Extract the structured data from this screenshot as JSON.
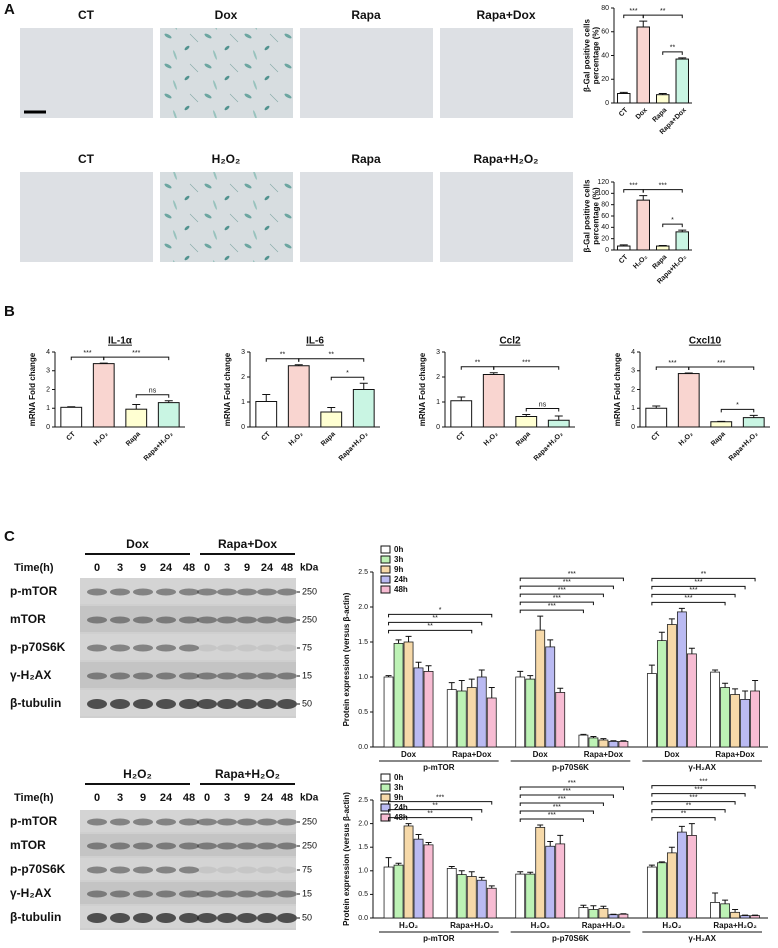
{
  "panels": [
    "A",
    "B",
    "C"
  ],
  "micrographs": {
    "rows": [
      [
        "CT",
        "Dox",
        "Rapa",
        "Rapa+Dox"
      ],
      [
        "CT",
        "H₂O₂",
        "Rapa",
        "Rapa+H₂O₂"
      ]
    ]
  },
  "blots": [
    {
      "groups": [
        "Dox",
        "Rapa+Dox"
      ],
      "time_label": "Time(h)",
      "times": [
        0,
        3,
        9,
        24,
        48
      ],
      "kda_label": "kDa",
      "proteins": [
        "p-mTOR",
        "mTOR",
        "p-p70S6K",
        "γ-H₂AX",
        "β-tubulin"
      ],
      "kda": [
        250,
        250,
        75,
        15,
        50
      ]
    },
    {
      "groups": [
        "H₂O₂",
        "Rapa+H₂O₂"
      ],
      "time_label": "Time(h)",
      "times": [
        0,
        3,
        9,
        24,
        48
      ],
      "kda_label": "kDa",
      "proteins": [
        "p-mTOR",
        "mTOR",
        "p-p70S6K",
        "γ-H₂AX",
        "β-tubulin"
      ],
      "kda": [
        250,
        250,
        75,
        15,
        50
      ]
    }
  ],
  "chart_data": [
    {
      "type": "bar",
      "y_label": [
        "β-Gal positive cells",
        "percentage (%)"
      ],
      "categories": [
        "CT",
        "Dox",
        "Rapa",
        "Rapa+Dox"
      ],
      "values": [
        8,
        64,
        7,
        37
      ],
      "errors": [
        1,
        5,
        1,
        1
      ],
      "colors": [
        "#ffffff",
        "#f9d5d0",
        "#ffffd2",
        "#c9f5e3"
      ],
      "ylim": [
        0,
        80
      ],
      "yticks": [
        0,
        20,
        40,
        60,
        80
      ],
      "annotations": [
        "***",
        "**",
        "**"
      ]
    },
    {
      "type": "bar",
      "y_label": [
        "β-Gal positive cells",
        "percentage (%)"
      ],
      "categories": [
        "CT",
        "H₂O₂",
        "Rapa",
        "Rapa+H₂O₂"
      ],
      "values": [
        7,
        88,
        7,
        32
      ],
      "errors": [
        2,
        8,
        1,
        3
      ],
      "colors": [
        "#ffffff",
        "#f9d5d0",
        "#ffffd2",
        "#c9f5e3"
      ],
      "ylim": [
        0,
        120
      ],
      "yticks": [
        0,
        20,
        40,
        60,
        80,
        100,
        120
      ],
      "annotations": [
        "***",
        "***",
        "*"
      ]
    },
    {
      "type": "bar",
      "title": "IL-1α",
      "y_label": [
        "mRNA Fold change"
      ],
      "categories": [
        "CT",
        "H₂O₂",
        "Rapa",
        "Rapa+H₂O₂"
      ],
      "values": [
        1.05,
        3.38,
        0.95,
        1.3
      ],
      "errors": [
        0.03,
        0.03,
        0.25,
        0.1
      ],
      "colors": [
        "#ffffff",
        "#f9d5d0",
        "#ffffd2",
        "#c9f5e3"
      ],
      "ylim": [
        0,
        4
      ],
      "yticks": [
        0,
        1,
        2,
        3,
        4
      ],
      "annotations": [
        "***",
        "***",
        "ns"
      ]
    },
    {
      "type": "bar",
      "title": "IL-6",
      "y_label": [
        "mRNA Fold change"
      ],
      "categories": [
        "CT",
        "H₂O₂",
        "Rapa",
        "Rapa+H₂O₂"
      ],
      "values": [
        1.02,
        2.45,
        0.6,
        1.5
      ],
      "errors": [
        0.28,
        0.04,
        0.18,
        0.25
      ],
      "colors": [
        "#ffffff",
        "#f9d5d0",
        "#ffffd2",
        "#c9f5e3"
      ],
      "ylim": [
        0,
        3
      ],
      "yticks": [
        0,
        1,
        2,
        3
      ],
      "annotations": [
        "**",
        "**",
        "*"
      ]
    },
    {
      "type": "bar",
      "title": "Ccl2",
      "y_label": [
        "mRNA Fold change"
      ],
      "categories": [
        "CT",
        "H₂O₂",
        "Rapa",
        "Rapa+H₂O₂"
      ],
      "values": [
        1.05,
        2.1,
        0.42,
        0.27
      ],
      "errors": [
        0.15,
        0.07,
        0.08,
        0.17
      ],
      "colors": [
        "#ffffff",
        "#f9d5d0",
        "#ffffd2",
        "#c9f5e3"
      ],
      "ylim": [
        0,
        3
      ],
      "yticks": [
        0,
        1,
        2,
        3
      ],
      "annotations": [
        "**",
        "***",
        "ns"
      ]
    },
    {
      "type": "bar",
      "title": "Cxcl10",
      "y_label": [
        "mRNA Fold change"
      ],
      "categories": [
        "CT",
        "H₂O₂",
        "Rapa",
        "Rapa+H₂O₂"
      ],
      "values": [
        1.0,
        2.85,
        0.28,
        0.5
      ],
      "errors": [
        0.12,
        0.03,
        0.02,
        0.12
      ],
      "colors": [
        "#ffffff",
        "#f9d5d0",
        "#ffffd2",
        "#c9f5e3"
      ],
      "ylim": [
        0,
        4
      ],
      "yticks": [
        0,
        1,
        2,
        3,
        4
      ],
      "annotations": [
        "***",
        "***",
        "*"
      ]
    },
    {
      "type": "grouped_bar",
      "y_label": [
        "Protein expression (versus β-actin)"
      ],
      "groups": [
        "p-mTOR",
        "p-p70S6K",
        "γ-H₂AX"
      ],
      "subgroups": [
        "Dox",
        "Rapa+Dox"
      ],
      "ylim": [
        0,
        2.5
      ],
      "yticks": [
        {
          "value": 0,
          "label": "0.0"
        },
        {
          "value": 0.5,
          "label": "0.5"
        },
        {
          "value": 1,
          "label": "1.0"
        },
        {
          "value": 1.5,
          "label": "1.5"
        },
        {
          "value": 2,
          "label": "2.0"
        },
        {
          "value": 2.5,
          "label": "2.5"
        }
      ],
      "series": [
        {
          "name": "0h",
          "color": "#ffffff",
          "values": [
            1.0,
            0.82,
            1.0,
            0.17,
            1.05,
            1.07
          ],
          "errors": [
            0.02,
            0.1,
            0.08,
            0.01,
            0.12,
            0.03
          ]
        },
        {
          "name": "3h",
          "color": "#bdf2b5",
          "values": [
            1.48,
            0.8,
            0.97,
            0.13,
            1.52,
            0.85
          ],
          "errors": [
            0.05,
            0.15,
            0.05,
            0.02,
            0.12,
            0.06
          ]
        },
        {
          "name": "9h",
          "color": "#f6d9a9",
          "values": [
            1.5,
            0.85,
            1.67,
            0.1,
            1.75,
            0.75
          ],
          "errors": [
            0.08,
            0.12,
            0.2,
            0.02,
            0.08,
            0.08
          ]
        },
        {
          "name": "24h",
          "color": "#babaf2",
          "values": [
            1.13,
            1.0,
            1.43,
            0.08,
            1.93,
            0.68
          ],
          "errors": [
            0.08,
            0.1,
            0.1,
            0.01,
            0.05,
            0.12
          ]
        },
        {
          "name": "48h",
          "color": "#f7bcd3",
          "values": [
            1.08,
            0.7,
            0.78,
            0.08,
            1.33,
            0.8
          ],
          "errors": [
            0.08,
            0.15,
            0.06,
            0.01,
            0.08,
            0.15
          ]
        }
      ],
      "annotations": [
        [
          "**",
          "**",
          "*"
        ],
        [
          "***",
          "***",
          "***",
          "***",
          "***"
        ],
        [
          "***",
          "***",
          "***",
          "**"
        ]
      ]
    },
    {
      "type": "grouped_bar",
      "y_label": [
        "Protein expression (versus β-actin)"
      ],
      "groups": [
        "p-mTOR",
        "p-p70S6K",
        "γ-H₂AX"
      ],
      "subgroups": [
        "H₂O₂",
        "Rapa+H₂O₂"
      ],
      "ylim": [
        0,
        2.5
      ],
      "yticks": [
        {
          "value": 0,
          "label": "0.0"
        },
        {
          "value": 0.5,
          "label": "0.5"
        },
        {
          "value": 1,
          "label": "1.0"
        },
        {
          "value": 1.5,
          "label": "1.5"
        },
        {
          "value": 2,
          "label": "2.0"
        },
        {
          "value": 2.5,
          "label": "2.5"
        }
      ],
      "series": [
        {
          "name": "0h",
          "color": "#ffffff",
          "values": [
            1.08,
            1.05,
            0.93,
            0.22,
            1.08,
            0.33
          ],
          "errors": [
            0.2,
            0.04,
            0.05,
            0.05,
            0.04,
            0.2
          ]
        },
        {
          "name": "3h",
          "color": "#bdf2b5",
          "values": [
            1.12,
            0.92,
            0.93,
            0.18,
            1.17,
            0.3
          ],
          "errors": [
            0.04,
            0.08,
            0.04,
            0.08,
            0.02,
            0.08
          ]
        },
        {
          "name": "9h",
          "color": "#f6d9a9",
          "values": [
            1.95,
            0.88,
            1.92,
            0.2,
            1.38,
            0.12
          ],
          "errors": [
            0.05,
            0.1,
            0.05,
            0.05,
            0.12,
            0.06
          ]
        },
        {
          "name": "24h",
          "color": "#babaf2",
          "values": [
            1.67,
            0.8,
            1.52,
            0.07,
            1.82,
            0.05
          ],
          "errors": [
            0.1,
            0.06,
            0.1,
            0.01,
            0.12,
            0.01
          ]
        },
        {
          "name": "48h",
          "color": "#f7bcd3",
          "values": [
            1.55,
            0.63,
            1.57,
            0.08,
            1.75,
            0.05
          ],
          "errors": [
            0.05,
            0.05,
            0.18,
            0.01,
            0.25,
            0.01
          ]
        }
      ],
      "annotations": [
        [
          "**",
          "**",
          "***"
        ],
        [
          "***",
          "***",
          "***",
          "***",
          "***"
        ],
        [
          "**",
          "**",
          "***",
          "***",
          "***"
        ]
      ]
    }
  ]
}
